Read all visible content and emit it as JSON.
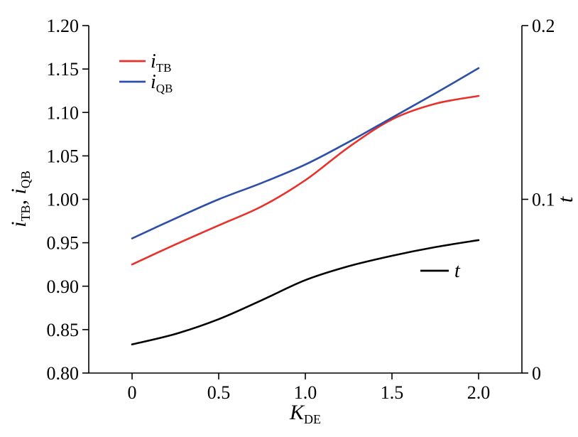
{
  "chart_data": {
    "type": "line",
    "x": [
      0,
      0.25,
      0.5,
      0.75,
      1.0,
      1.25,
      1.5,
      1.75,
      2.0
    ],
    "xlabel": {
      "main": "K",
      "sub": "DE"
    },
    "ylabel_left": {
      "a_main": "i",
      "a_sub": "TB",
      "sep": ", ",
      "b_main": "i",
      "b_sub": "QB"
    },
    "ylabel_right": "t",
    "xlim": [
      -0.25,
      2.25
    ],
    "ylim_left": [
      0.8,
      1.2
    ],
    "ylim_right": [
      0,
      0.2
    ],
    "x_ticks": [
      "0",
      "0.5",
      "1.0",
      "1.5",
      "2.0"
    ],
    "x_tick_values": [
      0,
      0.5,
      1.0,
      1.5,
      2.0
    ],
    "y_left_ticks": [
      "0.80",
      "0.85",
      "0.90",
      "0.95",
      "1.00",
      "1.05",
      "1.10",
      "1.15",
      "1.20"
    ],
    "y_left_tick_values": [
      0.8,
      0.85,
      0.9,
      0.95,
      1.0,
      1.05,
      1.1,
      1.15,
      1.2
    ],
    "y_right_ticks": [
      "0",
      "0.1",
      "0.2"
    ],
    "y_right_tick_values": [
      0,
      0.1,
      0.2
    ],
    "grid": false,
    "legend_position": "top-left",
    "series": [
      {
        "name_main": "i",
        "name_sub": "TB",
        "axis": "left",
        "color": "#e8312a",
        "values": [
          0.925,
          0.948,
          0.97,
          0.992,
          1.022,
          1.06,
          1.092,
          1.11,
          1.119
        ]
      },
      {
        "name_main": "i",
        "name_sub": "QB",
        "axis": "left",
        "color": "#2e4fa8",
        "values": [
          0.955,
          0.978,
          1.0,
          1.019,
          1.04,
          1.066,
          1.094,
          1.122,
          1.151
        ]
      },
      {
        "name_main": "t",
        "name_sub": "",
        "axis": "right",
        "color": "#000000",
        "values": [
          0.0165,
          0.0225,
          0.031,
          0.042,
          0.0535,
          0.0615,
          0.0675,
          0.0725,
          0.0765
        ]
      }
    ]
  }
}
